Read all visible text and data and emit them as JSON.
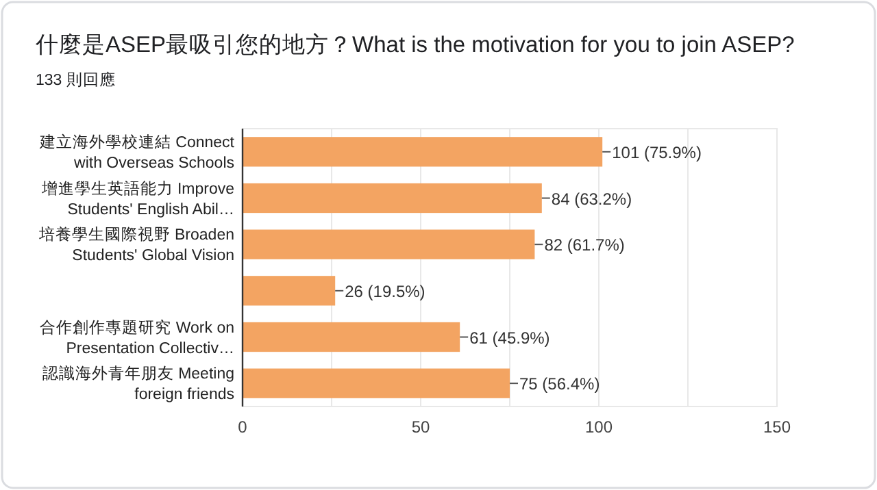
{
  "chart_data": {
    "type": "bar",
    "orientation": "horizontal",
    "title": "什麼是ASEP最吸引您的地方？What is the motivation for you to join ASEP?",
    "subtitle": "133 則回應",
    "categories": [
      "建立海外學校連結 Connect\nwith Overseas Schools",
      "增進學生英語能力 Improve\nStudents' English Abil…",
      "培養學生國際視野 Broaden\nStudents' Global Vision",
      null,
      "合作創作專題研究 Work on\nPresentation Collectiv…",
      "認識海外青年朋友 Meeting\nforeign friends"
    ],
    "values": [
      101,
      84,
      82,
      26,
      61,
      75
    ],
    "value_labels": [
      "101 (75.9%)",
      "84 (63.2%)",
      "82 (61.7%)",
      "26 (19.5%)",
      "61 (45.9%)",
      "75 (56.4%)"
    ],
    "color": "#f3a462",
    "xlim": [
      0,
      150
    ],
    "xticks": [
      0,
      {
        "value": 25,
        "label": null
      },
      50,
      {
        "value": 75,
        "label": null
      },
      100,
      {
        "value": 125,
        "label": null
      },
      150
    ],
    "grid": true
  }
}
